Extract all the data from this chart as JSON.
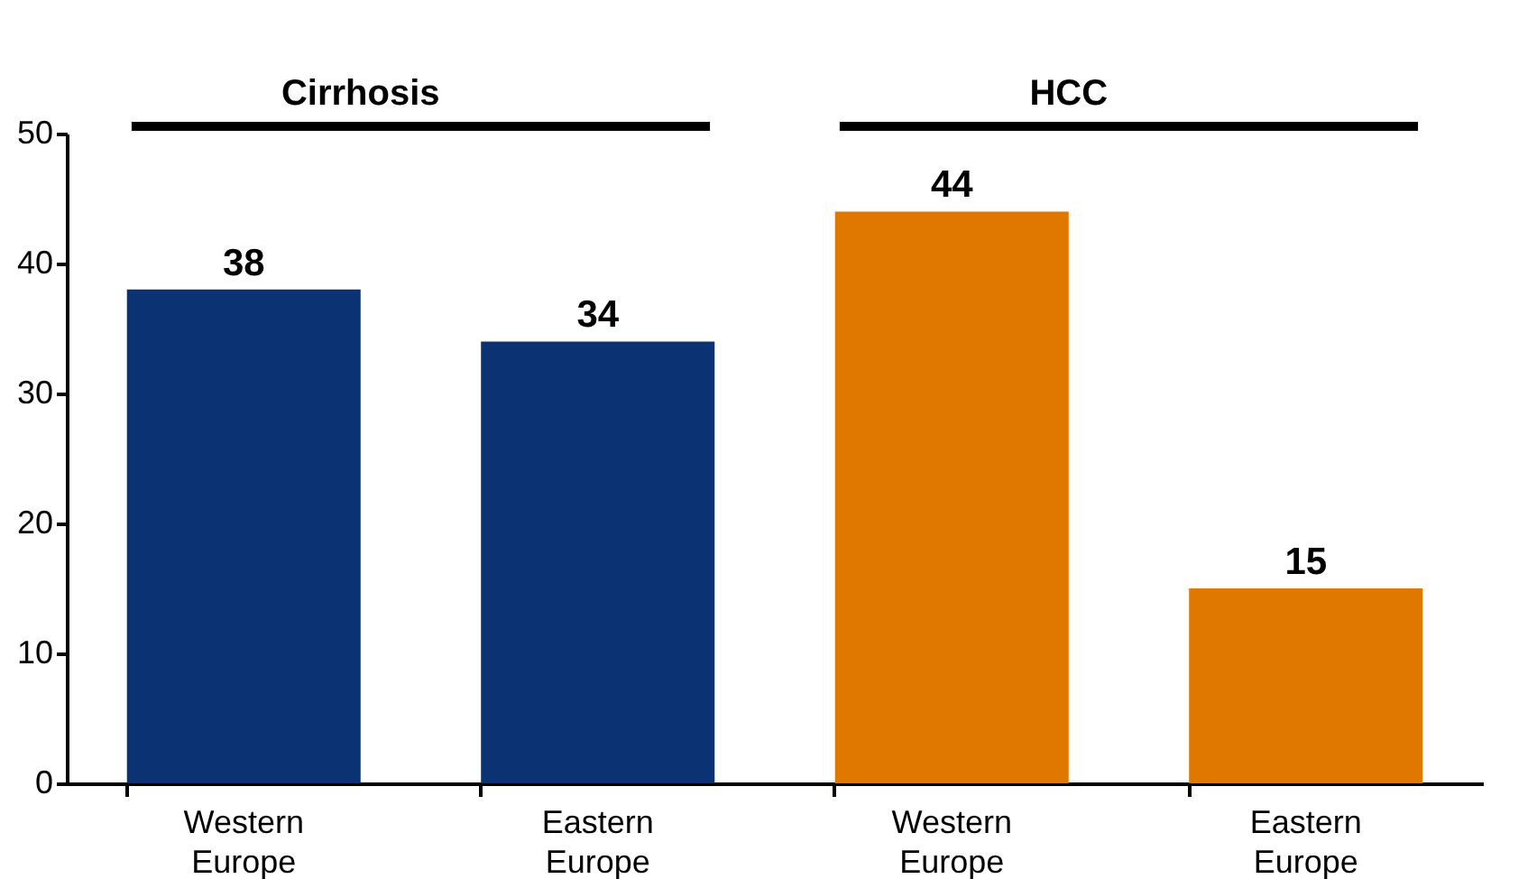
{
  "chart_data": {
    "type": "bar",
    "categories": [
      "Western Europe",
      "Eastern Europe",
      "Western Europe",
      "Eastern Europe"
    ],
    "values": [
      38,
      34,
      44,
      15
    ],
    "colors": [
      "#0b3272",
      "#0b3272",
      "#e07800",
      "#e07800"
    ],
    "ylim": [
      0,
      50
    ],
    "yticks": [
      0,
      10,
      20,
      30,
      40,
      50
    ],
    "grid": false,
    "data_labels": true,
    "annotations": [
      "Cirrhosis",
      "HCC"
    ]
  }
}
